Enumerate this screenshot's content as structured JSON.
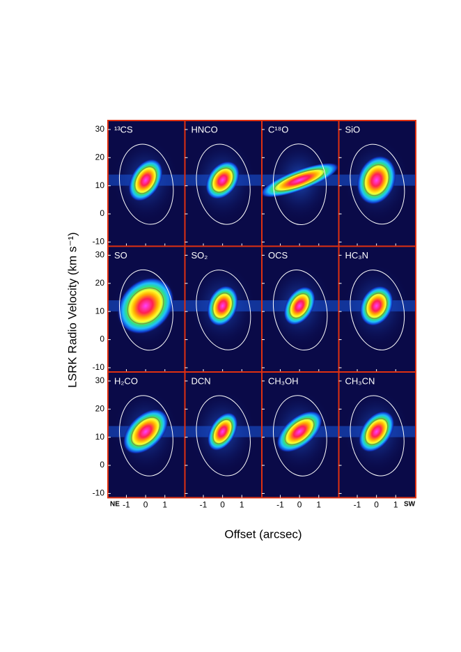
{
  "figure": {
    "y_label": "LSRK Radio Velocity (km s⁻¹)",
    "x_label": "Offset (arcsec)",
    "x_left_label": "NE",
    "x_right_label": "SW",
    "ylim": [
      -11.5,
      33.2
    ],
    "yticks": [
      -10,
      0,
      10,
      20,
      30
    ],
    "xlim": [
      -1.96,
      2.04
    ],
    "xticks": [
      -1,
      0,
      1
    ],
    "panels": [
      {
        "label": "¹³CS"
      },
      {
        "label": "HNCO"
      },
      {
        "label": "C¹⁸O"
      },
      {
        "label": "SiO"
      },
      {
        "label": "SO"
      },
      {
        "label": "SO₂"
      },
      {
        "label": "OCS"
      },
      {
        "label": "HC₃N"
      },
      {
        "label": "H₂CO"
      },
      {
        "label": "DCN"
      },
      {
        "label": "CH₃OH"
      },
      {
        "label": "CH₃CN"
      }
    ]
  }
}
